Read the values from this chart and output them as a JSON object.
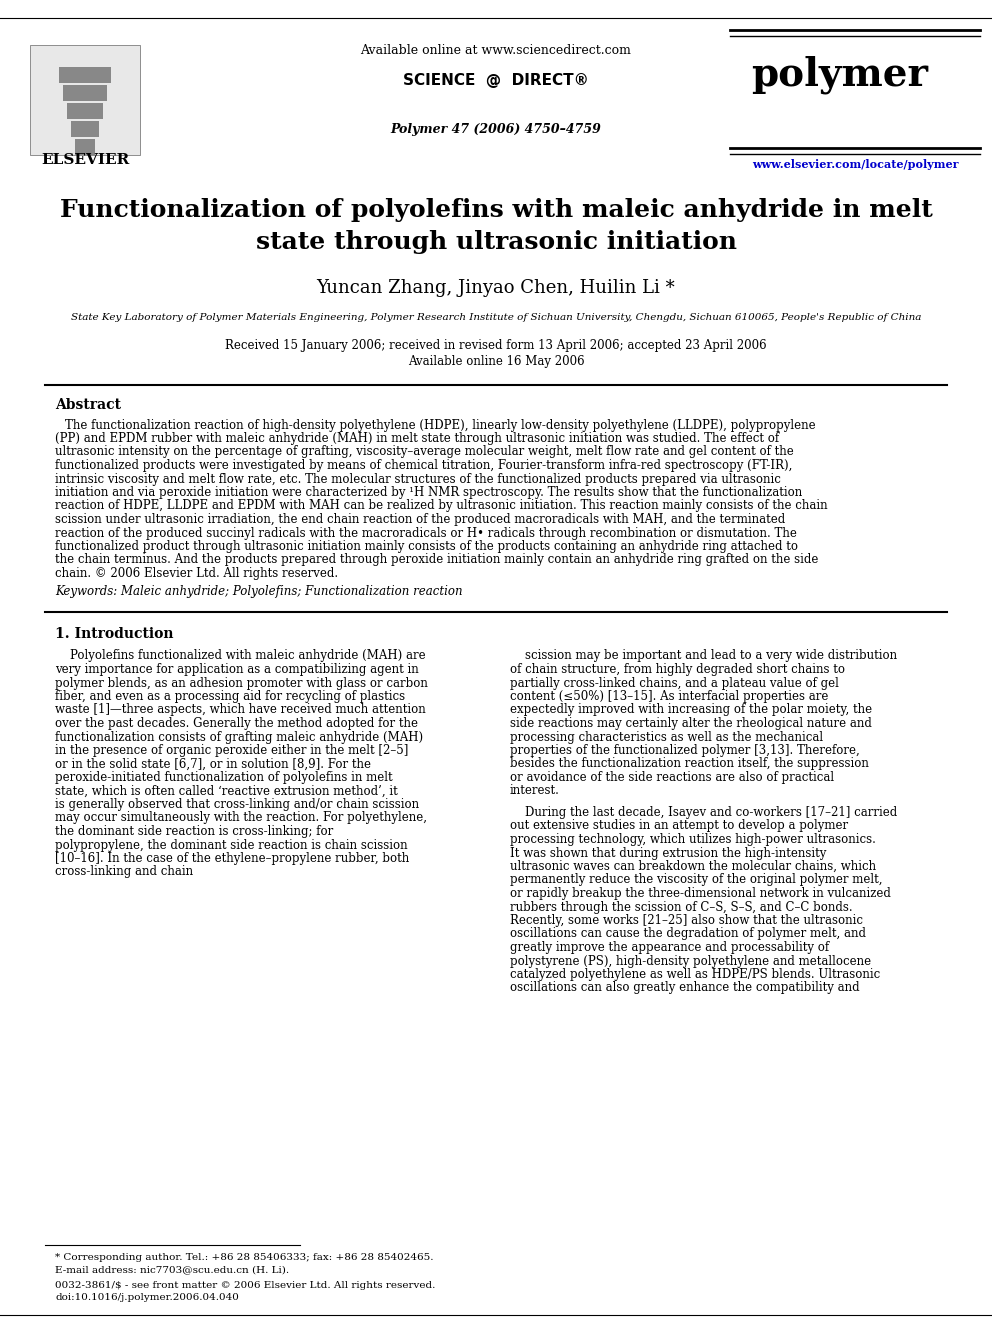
{
  "title_line1": "Functionalization of polyolefins with maleic anhydride in melt",
  "title_line2": "state through ultrasonic initiation",
  "authors": "Yuncan Zhang, Jinyao Chen, Huilin Li *",
  "affiliation": "State Key Laboratory of Polymer Materials Engineering, Polymer Research Institute of Sichuan University, Chengdu, Sichuan 610065, People's Republic of China",
  "received": "Received 15 January 2006; received in revised form 13 April 2006; accepted 23 April 2006",
  "available": "Available online 16 May 2006",
  "journal_header": "Available online at www.sciencedirect.com",
  "journal_citation": "Polymer 47 (2006) 4750–4759",
  "journal_name": "polymer",
  "journal_url": "www.elsevier.com/locate/polymer",
  "elsevier_text": "ELSEVIER",
  "abstract_title": "Abstract",
  "abstract_text": "The functionalization reaction of high-density polyethylene (HDPE), linearly low-density polyethylene (LLDPE), polypropylene (PP) and EPDM rubber with maleic anhydride (MAH) in melt state through ultrasonic initiation was studied. The effect of ultrasonic intensity on the percentage of grafting, viscosity–average molecular weight, melt flow rate and gel content of the functionalized products were investigated by means of chemical titration, Fourier-transform infra-red spectroscopy (FT-IR), intrinsic viscosity and melt flow rate, etc. The molecular structures of the functionalized products prepared via ultrasonic initiation and via peroxide initiation were characterized by ¹H NMR spectroscopy. The results show that the functionalization reaction of HDPE, LLDPE and EPDM with MAH can be realized by ultrasonic initiation. This reaction mainly consists of the chain scission under ultrasonic irradiation, the end chain reaction of the produced macroradicals with MAH, and the terminated reaction of the produced succinyl radicals with the macroradicals or H• radicals through recombination or dismutation. The functionalized product through ultrasonic initiation mainly consists of the products containing an anhydride ring attached to the chain terminus. And the products prepared through peroxide initiation mainly contain an anhydride ring grafted on the side chain.\n© 2006 Elsevier Ltd. All rights reserved.",
  "keywords": "Keywords: Maleic anhydride; Polyolefins; Functionalization reaction",
  "section1_title": "1. Introduction",
  "section1_col1_para1": "Polyolefins functionalized with maleic anhydride (MAH) are very importance for application as a compatibilizing agent in polymer blends, as an adhesion promoter with glass or carbon fiber, and even as a processing aid for recycling of plastics waste [1]—three aspects, which have received much attention over the past decades. Generally the method adopted for the functionalization consists of grafting maleic anhydride (MAH) in the presence of organic peroxide either in the melt [2–5] or in the solid state [6,7], or in solution [8,9]. For the peroxide-initiated functionalization of polyolefins in melt state, which is often called ‘reactive extrusion method’, it is generally observed that cross-linking and/or chain scission may occur simultaneously with the reaction. For polyethylene, the dominant side reaction is cross-linking; for polypropylene, the dominant side reaction is chain scission [10–16]. In the case of the ethylene–propylene rubber, both cross-linking and chain",
  "section1_col2_para1": "scission may be important and lead to a very wide distribution of chain structure, from highly degraded short chains to partially cross-linked chains, and a plateau value of gel content (≤50%) [13–15]. As interfacial properties are expectedly improved with increasing of the polar moiety, the side reactions may certainly alter the rheological nature and processing characteristics as well as the mechanical properties of the functionalized polymer [3,13]. Therefore, besides the functionalization reaction itself, the suppression or avoidance of the side reactions are also of practical interest.",
  "section1_col2_para2": "During the last decade, Isayev and co-workers [17–21] carried out extensive studies in an attempt to develop a polymer processing technology, which utilizes high-power ultrasonics. It was shown that during extrusion the high-intensity ultrasonic waves can breakdown the molecular chains, which permanently reduce the viscosity of the original polymer melt, or rapidly breakup the three-dimensional network in vulcanized rubbers through the scission of C–S, S–S, and C–C bonds. Recently, some works [21–25] also show that the ultrasonic oscillations can cause the degradation of polymer melt, and greatly improve the appearance and processability of polystyrene (PS), high-density polyethylene and metallocene catalyzed polyethylene as well as HDPE/PS blends. Ultrasonic oscillations can also greatly enhance the compatibility and",
  "footnote_line1": "* Corresponding author. Tel.: +86 28 85406333; fax: +86 28 85402465.",
  "footnote_line2": "E-mail address: nic7703@scu.edu.cn (H. Li).",
  "footnote_line3": "0032-3861/$ - see front matter © 2006 Elsevier Ltd. All rights reserved.",
  "footnote_line4": "doi:10.1016/j.polymer.2006.04.040",
  "bg_color": "#ffffff",
  "text_color": "#000000",
  "blue_color": "#0000cc",
  "header_line_color": "#000000"
}
